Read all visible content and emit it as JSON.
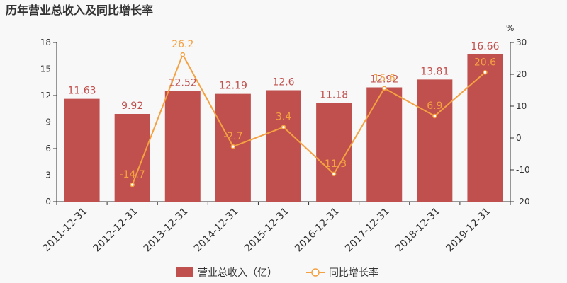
{
  "chart_data": {
    "type": "bar",
    "title": "历年营业总收入及同比增长率",
    "categories": [
      "2011-12-31",
      "2012-12-31",
      "2013-12-31",
      "2014-12-31",
      "2015-12-31",
      "2016-12-31",
      "2017-12-31",
      "2018-12-31",
      "2019-12-31"
    ],
    "series": [
      {
        "name": "营业总收入（亿）",
        "type": "bar",
        "axis": "left",
        "values": [
          11.63,
          9.92,
          12.52,
          12.19,
          12.6,
          11.18,
          12.92,
          13.81,
          16.66
        ],
        "labels": [
          "11.63",
          "9.92",
          "12.52",
          "12.19",
          "12.6",
          "11.18",
          "12.92",
          "13.81",
          "16.66"
        ],
        "color": "#c0504d"
      },
      {
        "name": "同比增长率",
        "type": "line",
        "axis": "right",
        "values": [
          null,
          -14.7,
          26.2,
          -2.7,
          3.4,
          -11.3,
          15.6,
          6.9,
          20.6
        ],
        "labels": [
          "",
          "-14.7",
          "26.2",
          "-2.7",
          "3.4",
          "-11.3",
          "15.6",
          "6.9",
          "20.6"
        ],
        "color": "#f4a142"
      }
    ],
    "y_left": {
      "lim": [
        0,
        18
      ],
      "ticks": [
        "0",
        "3",
        "6",
        "9",
        "12",
        "15",
        "18"
      ]
    },
    "y_right": {
      "lim": [
        -20,
        30
      ],
      "ticks": [
        "-20",
        "-10",
        "0",
        "10",
        "20",
        "30"
      ],
      "unit": "%"
    },
    "legend": {
      "position": "bottom"
    },
    "grid": false
  }
}
